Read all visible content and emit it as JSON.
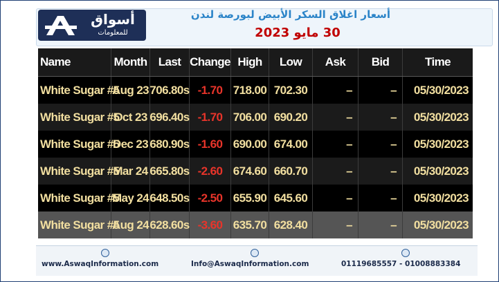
{
  "header": {
    "logo_text": "أسواق",
    "logo_subtext": "للمعلومات",
    "title": "أسعار اغلاق السكر الأبيض لبورصة لندن",
    "date": "30 مايو 2023"
  },
  "table": {
    "columns": [
      "Name",
      "Month",
      "Last",
      "Change",
      "High",
      "Low",
      "Ask",
      "Bid",
      "Time"
    ],
    "rows": [
      {
        "name": "White Sugar #5",
        "month": "Aug 23",
        "last": "706.80s",
        "change": "-1.70",
        "high": "718.00",
        "low": "702.30",
        "ask": "–",
        "bid": "–",
        "time": "05/30/2023"
      },
      {
        "name": "White Sugar #5",
        "month": "Oct 23",
        "last": "696.40s",
        "change": "-1.70",
        "high": "706.00",
        "low": "690.20",
        "ask": "–",
        "bid": "–",
        "time": "05/30/2023"
      },
      {
        "name": "White Sugar #5",
        "month": "Dec 23",
        "last": "680.90s",
        "change": "-1.60",
        "high": "690.00",
        "low": "674.00",
        "ask": "–",
        "bid": "–",
        "time": "05/30/2023"
      },
      {
        "name": "White Sugar #5",
        "month": "Mar 24",
        "last": "665.80s",
        "change": "-2.60",
        "high": "674.60",
        "low": "660.70",
        "ask": "–",
        "bid": "–",
        "time": "05/30/2023"
      },
      {
        "name": "White Sugar #5",
        "month": "May 24",
        "last": "648.50s",
        "change": "-2.50",
        "high": "655.90",
        "low": "645.60",
        "ask": "–",
        "bid": "–",
        "time": "05/30/2023"
      },
      {
        "name": "White Sugar #5",
        "month": "Aug 24",
        "last": "628.60s",
        "change": "-3.60",
        "high": "635.70",
        "low": "628.40",
        "ask": "–",
        "bid": "–",
        "time": "05/30/2023"
      }
    ]
  },
  "footer": {
    "website": "www.AswaqInformation.com",
    "email": "Info@AswaqInformation.com",
    "phones": "01119685557 - 01008883384",
    "icons": [
      "globe-icon",
      "email-icon",
      "phone-icon"
    ]
  },
  "colors": {
    "title_blue": "#2b84c8",
    "date_red": "#c00000",
    "value_yellow": "#f2dfa0",
    "change_red": "#e8342a",
    "logo_navy": "#1e2f57"
  }
}
